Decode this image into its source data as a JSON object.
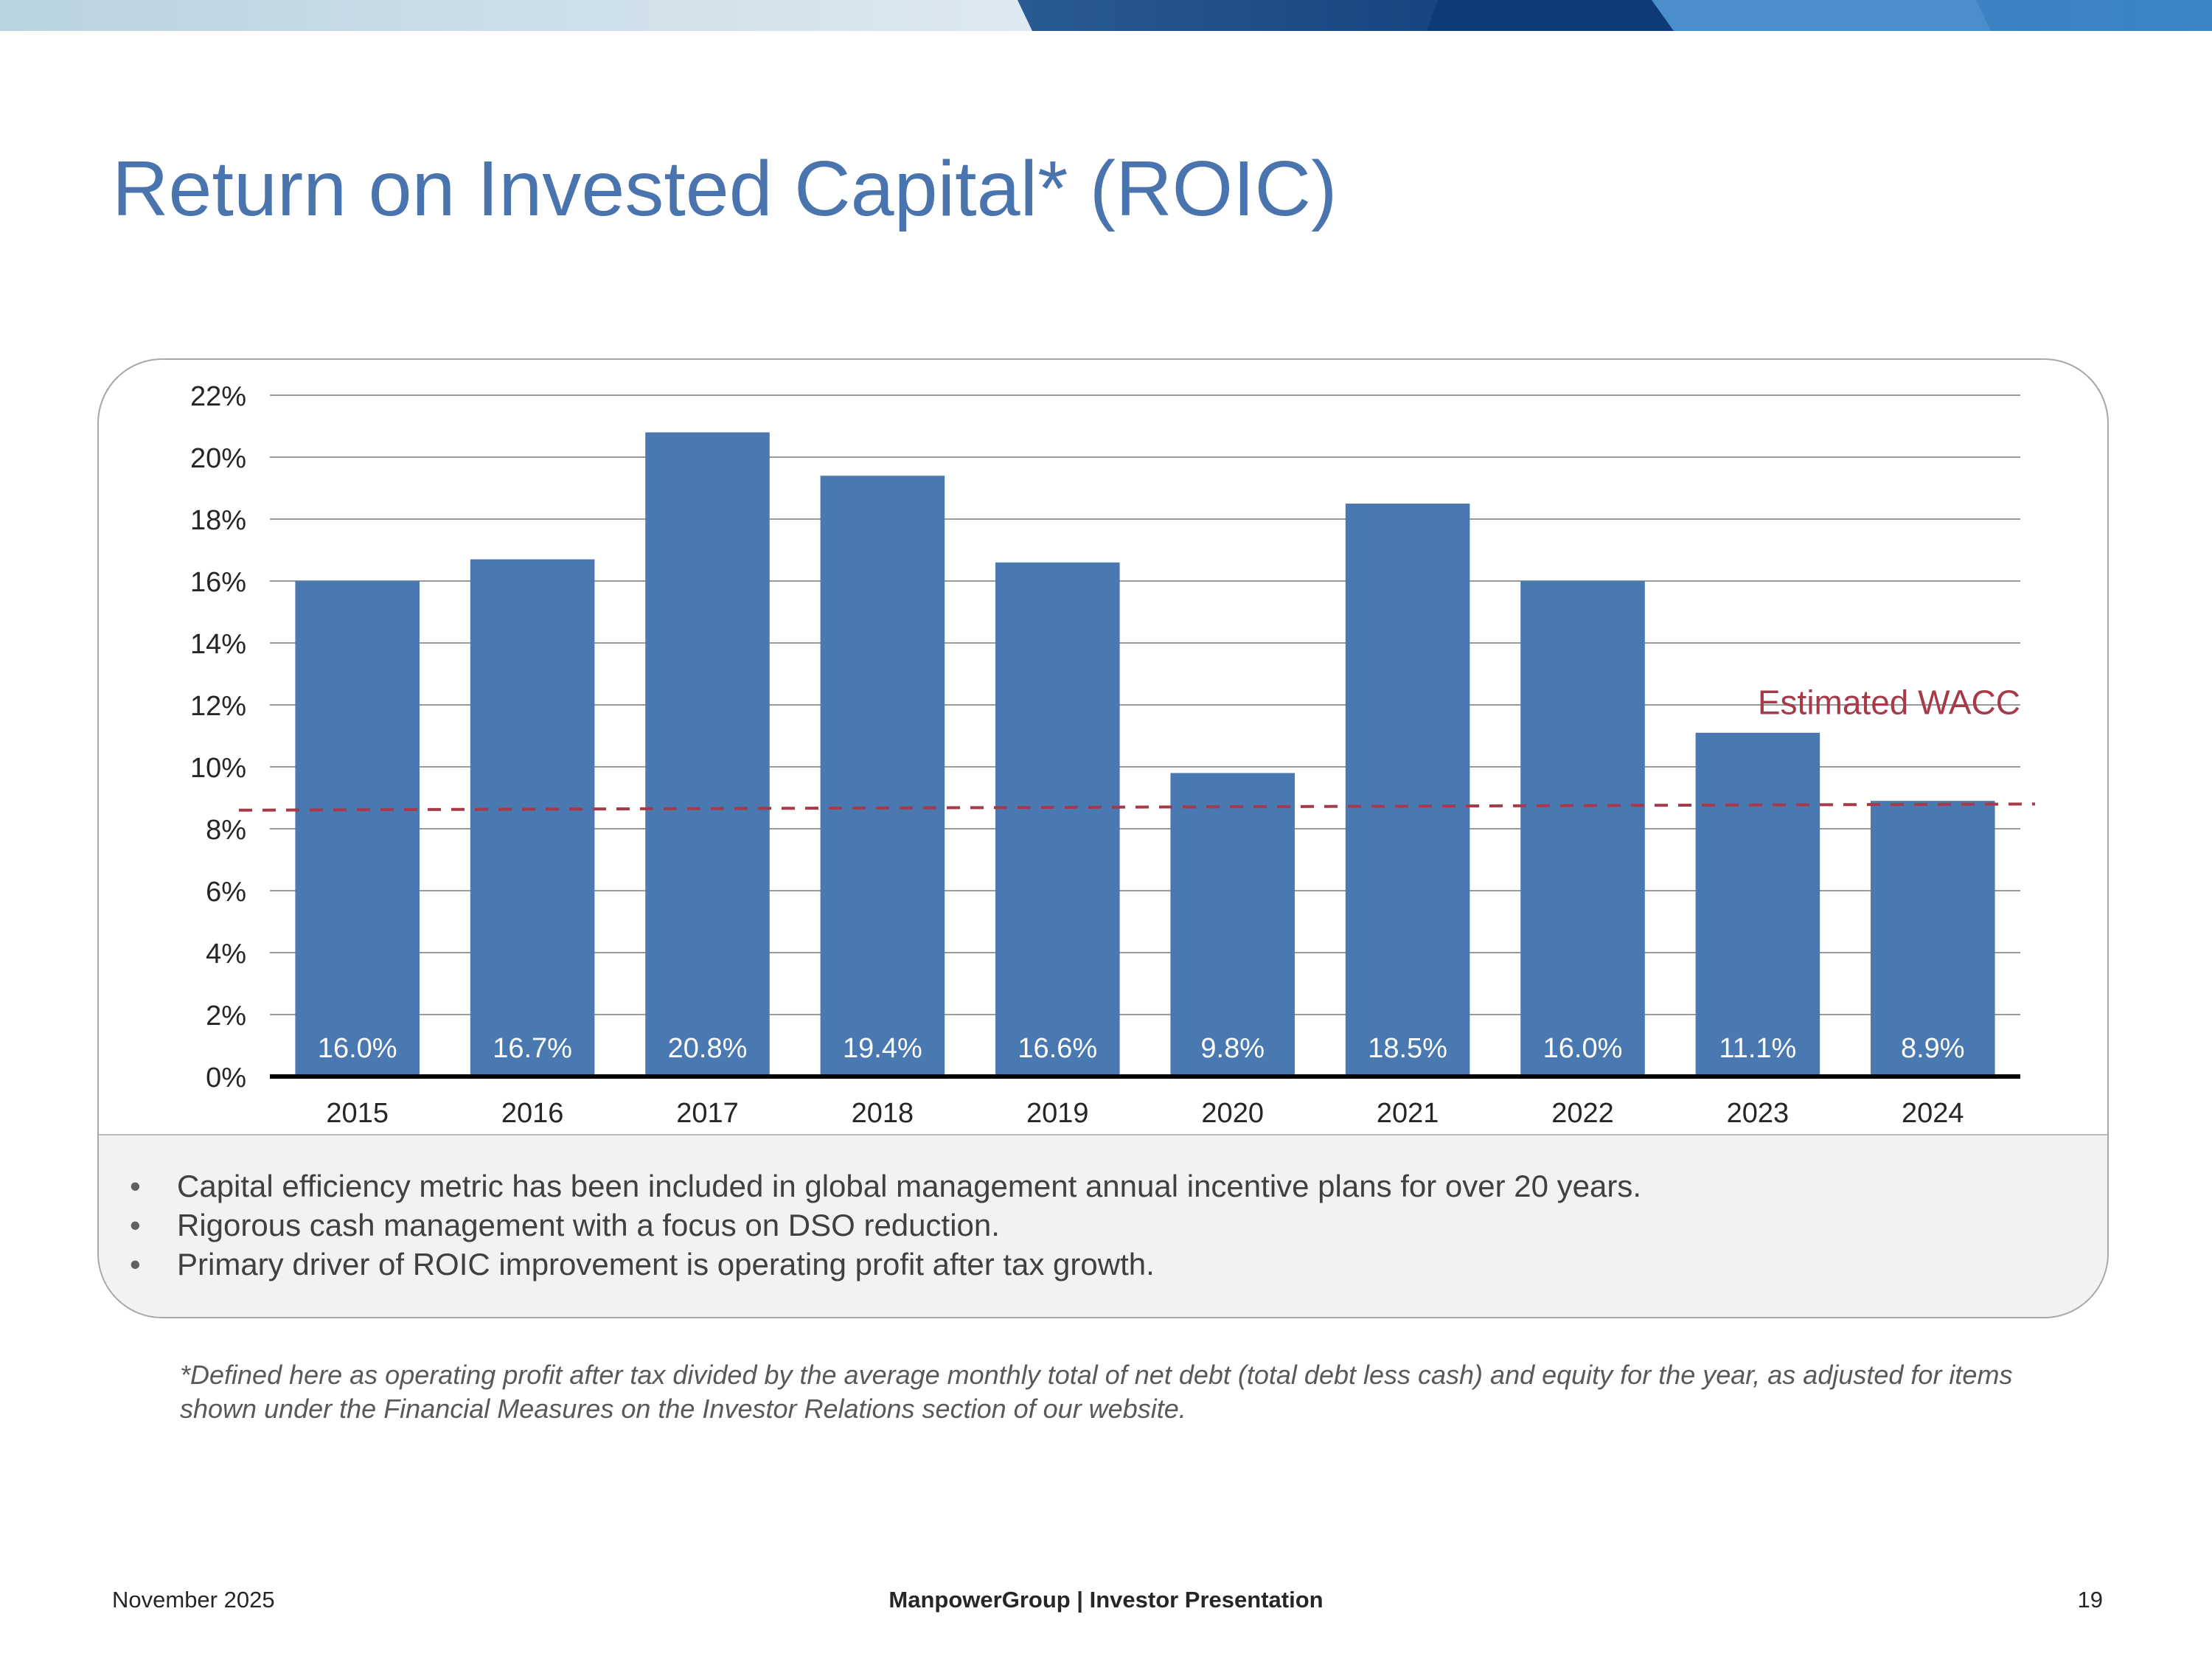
{
  "slide": {
    "title": "Return on Invested Capital* (ROIC)",
    "bullets": [
      "Capital efficiency metric has been included in global management annual incentive plans for over 20 years.",
      "Rigorous cash management with a focus on DSO reduction.",
      "Primary driver of ROIC improvement is operating profit after tax growth."
    ],
    "footnote": "*Defined here as operating profit after tax divided by the average monthly total of net debt (total debt less cash) and equity for the year, as adjusted for items shown under the Financial Measures on the Investor Relations section of our website."
  },
  "footer": {
    "date": "November 2025",
    "center": "ManpowerGroup  |  Investor Presentation",
    "page": "19"
  },
  "colors": {
    "title": "#4a74ad",
    "bar": "#4a78b0",
    "wacc": "#a63a48",
    "banner_light": "#c8dde8",
    "banner_dark": "#1f4f8a"
  },
  "chart_data": {
    "type": "bar",
    "title": "",
    "xlabel": "",
    "ylabel": "",
    "categories": [
      "2015",
      "2016",
      "2017",
      "2018",
      "2019",
      "2020",
      "2021",
      "2022",
      "2023",
      "2024"
    ],
    "values": [
      16.0,
      16.7,
      20.8,
      19.4,
      16.6,
      9.8,
      18.5,
      16.0,
      11.1,
      8.9
    ],
    "data_labels": [
      "16.0%",
      "16.7%",
      "20.8%",
      "19.4%",
      "16.6%",
      "9.8%",
      "18.5%",
      "16.0%",
      "11.1%",
      "8.9%"
    ],
    "ylim": [
      0,
      22
    ],
    "yticks": [
      0,
      2,
      4,
      6,
      8,
      10,
      12,
      14,
      16,
      18,
      20,
      22
    ],
    "ytick_labels": [
      "0%",
      "2%",
      "4%",
      "6%",
      "8%",
      "10%",
      "12%",
      "14%",
      "16%",
      "18%",
      "20%",
      "22%"
    ],
    "grid": true,
    "reference_line": {
      "label": "Estimated WACC",
      "start_value": 8.6,
      "end_value": 8.8,
      "style": "dashed"
    }
  }
}
